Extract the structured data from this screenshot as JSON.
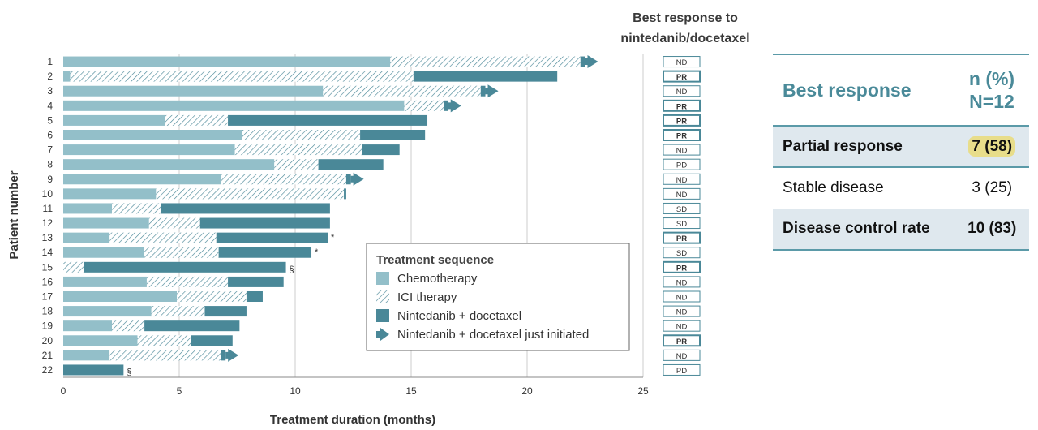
{
  "chart_data": {
    "type": "bar",
    "orientation": "horizontal-stacked",
    "xlabel": "Treatment duration (months)",
    "ylabel": "Patient number",
    "xlim": [
      0,
      25
    ],
    "xticks": [
      "0",
      "5",
      "10",
      "15",
      "20",
      "25"
    ],
    "grid": true,
    "legend_title": "Treatment sequence",
    "legend_position": "bottom-right inside plot",
    "legend": [
      {
        "key": "chemo",
        "label": "Chemotherapy"
      },
      {
        "key": "ici",
        "label": "ICI therapy"
      },
      {
        "key": "nd",
        "label": "Nintedanib + docetaxel"
      },
      {
        "key": "arrow",
        "label": "Nintedanib + docetaxel just initiated"
      }
    ],
    "response_header": [
      "Best response to",
      "nintedanib/docetaxel"
    ],
    "patients": [
      {
        "id": "1",
        "segments": [
          {
            "t": "chemo",
            "s": 0,
            "e": 14.1
          },
          {
            "t": "ici",
            "s": 14.1,
            "e": 22.3
          },
          {
            "t": "nd",
            "s": 22.3,
            "e": 22.5
          }
        ],
        "arrow": true,
        "note": "",
        "response": "ND"
      },
      {
        "id": "2",
        "segments": [
          {
            "t": "chemo",
            "s": 0,
            "e": 0.3
          },
          {
            "t": "ici",
            "s": 0.3,
            "e": 15.1
          },
          {
            "t": "nd",
            "s": 15.1,
            "e": 21.3
          }
        ],
        "arrow": false,
        "note": "",
        "response": "PR"
      },
      {
        "id": "3",
        "segments": [
          {
            "t": "chemo",
            "s": 0,
            "e": 11.2
          },
          {
            "t": "ici",
            "s": 11.2,
            "e": 18.0
          },
          {
            "t": "nd",
            "s": 18.0,
            "e": 18.2
          }
        ],
        "arrow": true,
        "note": "",
        "response": "ND"
      },
      {
        "id": "4",
        "segments": [
          {
            "t": "chemo",
            "s": 0,
            "e": 14.7
          },
          {
            "t": "ici",
            "s": 14.7,
            "e": 16.4
          },
          {
            "t": "nd",
            "s": 16.4,
            "e": 16.6
          }
        ],
        "arrow": true,
        "note": "",
        "response": "PR"
      },
      {
        "id": "5",
        "segments": [
          {
            "t": "chemo",
            "s": 0,
            "e": 4.4
          },
          {
            "t": "ici",
            "s": 4.4,
            "e": 7.1
          },
          {
            "t": "nd",
            "s": 7.1,
            "e": 15.7
          }
        ],
        "arrow": false,
        "note": "",
        "response": "PR"
      },
      {
        "id": "6",
        "segments": [
          {
            "t": "chemo",
            "s": 0,
            "e": 7.7
          },
          {
            "t": "ici",
            "s": 7.7,
            "e": 12.8
          },
          {
            "t": "nd",
            "s": 12.8,
            "e": 15.6
          }
        ],
        "arrow": false,
        "note": "",
        "response": "PR"
      },
      {
        "id": "7",
        "segments": [
          {
            "t": "chemo",
            "s": 0,
            "e": 7.4
          },
          {
            "t": "ici",
            "s": 7.4,
            "e": 12.9
          },
          {
            "t": "nd",
            "s": 12.9,
            "e": 14.5
          }
        ],
        "arrow": false,
        "note": "",
        "response": "ND"
      },
      {
        "id": "8",
        "segments": [
          {
            "t": "chemo",
            "s": 0,
            "e": 9.1
          },
          {
            "t": "ici",
            "s": 9.1,
            "e": 11.0
          },
          {
            "t": "nd",
            "s": 11.0,
            "e": 13.8
          }
        ],
        "arrow": false,
        "note": "",
        "response": "PD"
      },
      {
        "id": "9",
        "segments": [
          {
            "t": "chemo",
            "s": 0,
            "e": 6.8
          },
          {
            "t": "ici",
            "s": 6.8,
            "e": 12.2
          },
          {
            "t": "nd",
            "s": 12.2,
            "e": 12.4
          }
        ],
        "arrow": true,
        "note": "",
        "response": "ND"
      },
      {
        "id": "10",
        "segments": [
          {
            "t": "chemo",
            "s": 0,
            "e": 4.0
          },
          {
            "t": "ici",
            "s": 4.0,
            "e": 12.1
          },
          {
            "t": "nd",
            "s": 12.1,
            "e": 12.2
          }
        ],
        "arrow": false,
        "note": "",
        "response": "ND"
      },
      {
        "id": "11",
        "segments": [
          {
            "t": "chemo",
            "s": 0,
            "e": 2.1
          },
          {
            "t": "ici",
            "s": 2.1,
            "e": 4.2
          },
          {
            "t": "nd",
            "s": 4.2,
            "e": 11.5
          }
        ],
        "arrow": false,
        "note": "",
        "response": "SD"
      },
      {
        "id": "12",
        "segments": [
          {
            "t": "chemo",
            "s": 0,
            "e": 3.7
          },
          {
            "t": "ici",
            "s": 3.7,
            "e": 5.9
          },
          {
            "t": "nd",
            "s": 5.9,
            "e": 11.5
          }
        ],
        "arrow": false,
        "note": "",
        "response": "SD"
      },
      {
        "id": "13",
        "segments": [
          {
            "t": "chemo",
            "s": 0,
            "e": 2.0
          },
          {
            "t": "ici",
            "s": 2.0,
            "e": 6.6
          },
          {
            "t": "nd",
            "s": 6.6,
            "e": 11.4
          }
        ],
        "arrow": false,
        "note": "*",
        "response": "PR"
      },
      {
        "id": "14",
        "segments": [
          {
            "t": "chemo",
            "s": 0,
            "e": 3.5
          },
          {
            "t": "ici",
            "s": 3.5,
            "e": 6.7
          },
          {
            "t": "nd",
            "s": 6.7,
            "e": 10.7
          }
        ],
        "arrow": false,
        "note": "*",
        "response": "SD"
      },
      {
        "id": "15",
        "segments": [
          {
            "t": "chemo",
            "s": 0,
            "e": 0.0
          },
          {
            "t": "ici",
            "s": 0.0,
            "e": 0.9
          },
          {
            "t": "nd",
            "s": 0.9,
            "e": 9.6
          }
        ],
        "arrow": false,
        "note": "§",
        "response": "PR"
      },
      {
        "id": "16",
        "segments": [
          {
            "t": "chemo",
            "s": 0,
            "e": 3.6
          },
          {
            "t": "ici",
            "s": 3.6,
            "e": 7.1
          },
          {
            "t": "nd",
            "s": 7.1,
            "e": 9.5
          }
        ],
        "arrow": false,
        "note": "",
        "response": "ND"
      },
      {
        "id": "17",
        "segments": [
          {
            "t": "chemo",
            "s": 0,
            "e": 4.9
          },
          {
            "t": "ici",
            "s": 4.9,
            "e": 7.9
          },
          {
            "t": "nd",
            "s": 7.9,
            "e": 8.6
          }
        ],
        "arrow": false,
        "note": "",
        "response": "ND"
      },
      {
        "id": "18",
        "segments": [
          {
            "t": "chemo",
            "s": 0,
            "e": 3.8
          },
          {
            "t": "ici",
            "s": 3.8,
            "e": 6.1
          },
          {
            "t": "nd",
            "s": 6.1,
            "e": 7.9
          }
        ],
        "arrow": false,
        "note": "",
        "response": "ND"
      },
      {
        "id": "19",
        "segments": [
          {
            "t": "chemo",
            "s": 0,
            "e": 2.1
          },
          {
            "t": "ici",
            "s": 2.1,
            "e": 3.5
          },
          {
            "t": "nd",
            "s": 3.5,
            "e": 7.6
          }
        ],
        "arrow": false,
        "note": "",
        "response": "ND"
      },
      {
        "id": "20",
        "segments": [
          {
            "t": "chemo",
            "s": 0,
            "e": 3.2
          },
          {
            "t": "ici",
            "s": 3.2,
            "e": 5.5
          },
          {
            "t": "nd",
            "s": 5.5,
            "e": 7.3
          }
        ],
        "arrow": false,
        "note": "",
        "response": "PR"
      },
      {
        "id": "21",
        "segments": [
          {
            "t": "chemo",
            "s": 0,
            "e": 2.0
          },
          {
            "t": "ici",
            "s": 2.0,
            "e": 6.8
          },
          {
            "t": "nd",
            "s": 6.8,
            "e": 7.0
          }
        ],
        "arrow": true,
        "note": "",
        "response": "ND"
      },
      {
        "id": "22",
        "segments": [
          {
            "t": "chemo",
            "s": 0,
            "e": 0.0
          },
          {
            "t": "ici",
            "s": 0.0,
            "e": 0.0
          },
          {
            "t": "nd",
            "s": 0.0,
            "e": 2.6
          }
        ],
        "arrow": false,
        "note": "§",
        "response": "PD"
      }
    ]
  },
  "table": {
    "header": {
      "label": "Best response",
      "n_line1": "n (%)",
      "n_line2": "N=12"
    },
    "rows": [
      {
        "label": "Partial response",
        "value": "7 (58)"
      },
      {
        "label": "Stable disease",
        "value": "3 (25)"
      },
      {
        "label": "Disease control rate",
        "value": "10 (83)"
      }
    ]
  },
  "colors": {
    "chemo": "#93bfc9",
    "nd": "#4a8898",
    "hatch": "#4a8898",
    "grid": "#cccccc",
    "axis_text": "#333333",
    "table_border": "#5b9aa8",
    "table_shade": "#dfe8ee",
    "highlight": "#e8dd8a"
  }
}
